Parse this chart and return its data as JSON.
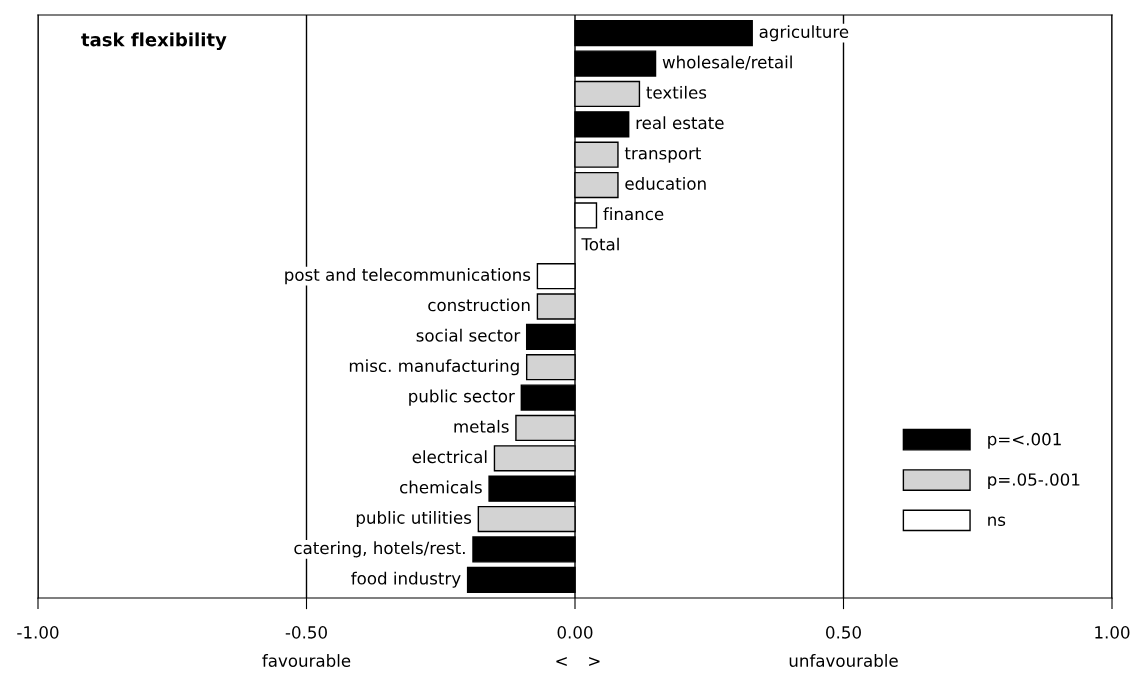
{
  "chart_data": {
    "type": "bar",
    "orientation": "horizontal",
    "title": "task flexibility",
    "categories": [
      "agriculture",
      "wholesale/retail",
      "textiles",
      "real estate",
      "transport",
      "education",
      "finance",
      "Total",
      "post and telecommunications",
      "construction",
      "social sector",
      "misc. manufacturing",
      "public sector",
      "metals",
      "electrical",
      "chemicals",
      "public utilities",
      "catering, hotels/rest.",
      "food industry"
    ],
    "series": [
      {
        "name": "p=<.001",
        "color": "#000000",
        "values": [
          0.33,
          0.15,
          null,
          0.1,
          null,
          null,
          null,
          null,
          null,
          null,
          -0.09,
          null,
          -0.1,
          null,
          null,
          -0.16,
          null,
          -0.19,
          -0.2
        ]
      },
      {
        "name": "p=.05-.001",
        "color": "#d3d3d3",
        "values": [
          null,
          null,
          0.12,
          null,
          0.08,
          0.08,
          null,
          null,
          null,
          -0.07,
          null,
          -0.09,
          null,
          -0.11,
          -0.15,
          null,
          -0.18,
          null,
          null
        ]
      },
      {
        "name": "ns",
        "color": "#ffffff",
        "values": [
          null,
          null,
          null,
          null,
          null,
          null,
          0.04,
          null,
          -0.07,
          null,
          null,
          null,
          null,
          null,
          null,
          null,
          null,
          null,
          null
        ]
      }
    ],
    "xlim": [
      -1.0,
      1.0
    ],
    "xticks": [
      {
        "value": -1.0,
        "label": "-1.00"
      },
      {
        "value": -0.5,
        "label": "-0.50"
      },
      {
        "value": 0.0,
        "label": "0.00"
      },
      {
        "value": 0.5,
        "label": "0.50"
      },
      {
        "value": 1.0,
        "label": "1.00"
      }
    ],
    "grid": "x",
    "legend": "bottom right",
    "annotations": [
      "favourable",
      "<",
      ">",
      "unfavourable"
    ]
  }
}
